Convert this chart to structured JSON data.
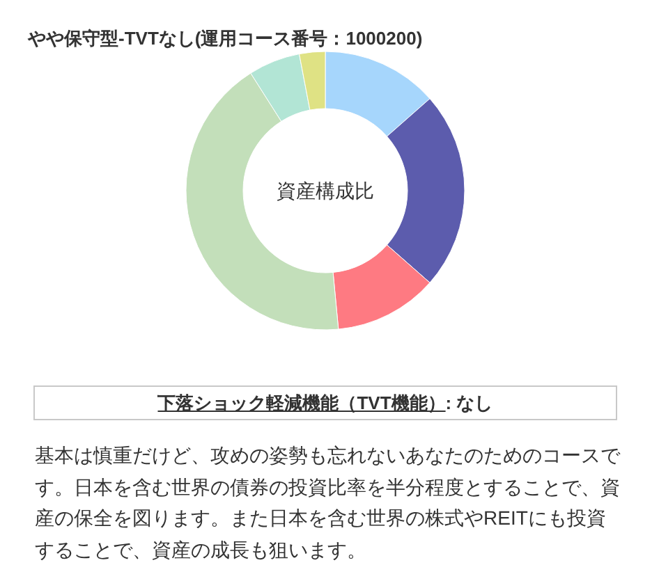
{
  "chart_data": {
    "type": "donut",
    "title": "やや保守型-TVTなし(運用コース番号：1000200)",
    "categories": [
      null,
      null,
      null,
      null,
      null,
      null
    ],
    "values": [
      13.5,
      23,
      12,
      42.5,
      6,
      3
    ],
    "colors": [
      "#a6d6fc",
      "#5c5cad",
      "#fe7a82",
      "#c3dfba",
      "#b2e5d5",
      "#dfe284"
    ],
    "annotations": [
      "資産構成比",
      "下落ショック軽減機能（TVT機能）",
      ": なし",
      "基本は慎重だけど、攻めの姿勢も忘れないあなたのためのコースです。日本を含む世界の債券の投資比率を半分程度とすることで、資産の保全を図ります。また日本を含む世界の株式やREITにも投資することで、資産の成長も狙います。"
    ]
  }
}
